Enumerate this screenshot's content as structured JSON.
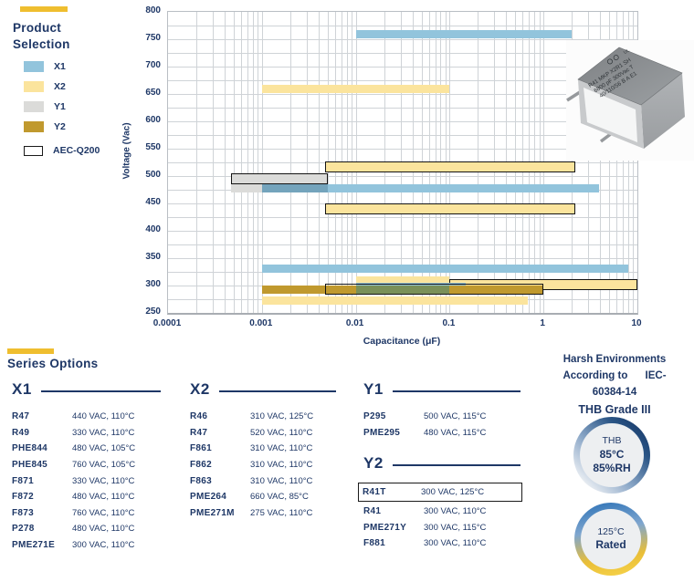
{
  "accents": {
    "marker_color": "#EFBE2F",
    "navy": "#1E3766"
  },
  "legend": {
    "title_line1": "Product",
    "title_line2": "Selection",
    "items": [
      {
        "label": "X1",
        "color": "#92C4DC",
        "outlined": false
      },
      {
        "label": "X2",
        "color": "#FBE49D",
        "outlined": false
      },
      {
        "label": "Y1",
        "color": "#DBDBD9",
        "outlined": false
      },
      {
        "label": "Y2",
        "color": "#C0992E",
        "outlined": false
      },
      {
        "label": "AEC-Q200",
        "color": "#FFFFFF",
        "outlined": true
      }
    ]
  },
  "chart_data": {
    "type": "bar",
    "orientation": "horizontal-range",
    "title": "",
    "xlabel": "Capacitance (μF)",
    "ylabel": "Voltage (Vac)",
    "x_scale": "log",
    "x_range": [
      0.0001,
      10
    ],
    "y_range": [
      250,
      800
    ],
    "x_ticks": [
      "0.0001",
      "0.001",
      "0.01",
      "0.1",
      "1",
      "10"
    ],
    "x_tick_values": [
      0.0001,
      0.001,
      0.01,
      0.1,
      1,
      10
    ],
    "y_ticks": [
      800,
      750,
      700,
      650,
      600,
      550,
      500,
      450,
      400,
      350,
      300,
      250
    ],
    "y_minor_grid_step": 25,
    "grid": true,
    "legend_position": "left",
    "palette": {
      "X1": "#92C4DC",
      "X2": "#FBE49D",
      "Y1": "#DBDBD9",
      "Y2": "#C0992E",
      "X1-over-Y1": "#74A4BC",
      "X1-over-Y2": "#7A9059",
      "outline": "transparent"
    },
    "bars": [
      {
        "series": "X1",
        "voltage": 760,
        "from": 0.01,
        "to": 2.0,
        "aec_q200": false,
        "dy": 0
      },
      {
        "series": "X2",
        "voltage": 660,
        "from": 0.001,
        "to": 0.1,
        "aec_q200": false,
        "dy": 0
      },
      {
        "series": "X2",
        "voltage": 520,
        "from": 0.0047,
        "to": 2.2,
        "aec_q200": true,
        "dy": 2
      },
      {
        "series": "Y1",
        "voltage": 500,
        "from": 0.00047,
        "to": 0.005,
        "aec_q200": true,
        "dy": 3
      },
      {
        "series": "Y1",
        "voltage": 480,
        "from": 0.00047,
        "to": 0.005,
        "aec_q200": false,
        "dy": 1
      },
      {
        "series": "X1",
        "voltage": 480,
        "from": 0.001,
        "to": 3.9,
        "aec_q200": false,
        "dy": 1
      },
      {
        "series": "X1-over-Y1",
        "voltage": 480,
        "from": 0.001,
        "to": 0.005,
        "aec_q200": false,
        "dy": 1
      },
      {
        "series": "X2",
        "voltage": 440,
        "from": 0.0047,
        "to": 2.2,
        "aec_q200": true,
        "dy": 0
      },
      {
        "series": "X1",
        "voltage": 330,
        "from": 0.001,
        "to": 8.0,
        "aec_q200": false,
        "dy": -1
      },
      {
        "series": "X2",
        "voltage": 310,
        "from": 0.01,
        "to": 0.1,
        "aec_q200": false,
        "dy": 0
      },
      {
        "series": "X2",
        "voltage": 310,
        "from": 0.1,
        "to": 10,
        "aec_q200": true,
        "dy": 5
      },
      {
        "series": "X1",
        "voltage": 300,
        "from": 0.01,
        "to": 0.15,
        "aec_q200": false,
        "dy": 1
      },
      {
        "series": "Y2",
        "voltage": 300,
        "from": 0.001,
        "to": 1.0,
        "aec_q200": false,
        "dy": 4
      },
      {
        "series": "X1-over-Y2",
        "voltage": 300,
        "from": 0.01,
        "to": 0.1,
        "aec_q200": false,
        "dy": 4
      },
      {
        "series": "outline",
        "voltage": 300,
        "from": 0.0047,
        "to": 1.0,
        "aec_q200": true,
        "dy": 4
      },
      {
        "series": "X2",
        "voltage": 275,
        "from": 0.001,
        "to": 0.68,
        "aec_q200": false,
        "dy": 1
      }
    ]
  },
  "product_photo": {
    "label_line1": "R41 MKP X2R1 SH",
    "label_line2": "6800 pF 300Vac T",
    "label_line3": "40/110/56  B  A  E1"
  },
  "series_options": {
    "title": "Series Options",
    "columns": [
      {
        "name": "X1",
        "rows": [
          {
            "part": "R47",
            "spec": "440 VAC, 110°C",
            "boxed": false
          },
          {
            "part": "R49",
            "spec": "330 VAC, 110°C",
            "boxed": false
          },
          {
            "part": "PHE844",
            "spec": "480 VAC, 105°C",
            "boxed": false
          },
          {
            "part": "PHE845",
            "spec": "760 VAC, 105°C",
            "boxed": false
          },
          {
            "part": "F871",
            "spec": "330 VAC, 110°C",
            "boxed": false
          },
          {
            "part": "F872",
            "spec": "480 VAC, 110°C",
            "boxed": false
          },
          {
            "part": "F873",
            "spec": "760 VAC, 110°C",
            "boxed": false
          },
          {
            "part": "P278",
            "spec": "480 VAC, 110°C",
            "boxed": false
          },
          {
            "part": "PME271E",
            "spec": "300 VAC, 110°C",
            "boxed": false
          }
        ]
      },
      {
        "name": "X2",
        "rows": [
          {
            "part": "R46",
            "spec": "310 VAC, 125°C",
            "boxed": false
          },
          {
            "part": "R47",
            "spec": "520 VAC, 110°C",
            "boxed": false
          },
          {
            "part": "F861",
            "spec": "310 VAC, 110°C",
            "boxed": false
          },
          {
            "part": "F862",
            "spec": "310 VAC, 110°C",
            "boxed": false
          },
          {
            "part": "F863",
            "spec": "310 VAC, 110°C",
            "boxed": false
          },
          {
            "part": "PME264",
            "spec": "660 VAC, 85°C",
            "boxed": false
          },
          {
            "part": "PME271M",
            "spec": "275 VAC, 110°C",
            "boxed": false
          }
        ]
      },
      {
        "name": "Y1",
        "rows": [
          {
            "part": "P295",
            "spec": "500 VAC, 115°C",
            "boxed": false
          },
          {
            "part": "PME295",
            "spec": "480 VAC, 115°C",
            "boxed": false
          }
        ]
      },
      {
        "name": "Y2",
        "rows": [
          {
            "part": "R41T",
            "spec": "300 VAC, 125°C",
            "boxed": true
          },
          {
            "part": "R41",
            "spec": "300 VAC, 110°C",
            "boxed": false
          },
          {
            "part": "PME271Y",
            "spec": "300 VAC, 115°C",
            "boxed": false
          },
          {
            "part": "F881",
            "spec": "300 VAC, 110°C",
            "boxed": false
          }
        ]
      }
    ]
  },
  "harsh_environments": {
    "line1": "Harsh Environments",
    "line2": "According to      IEC-",
    "line3": "60384-14",
    "line4": "THB Grade III",
    "badge_thb": {
      "line1": "THB",
      "line2": "85°C",
      "line3": "85%RH"
    },
    "badge_125": {
      "line1": "125°C",
      "line2": "Rated"
    }
  }
}
